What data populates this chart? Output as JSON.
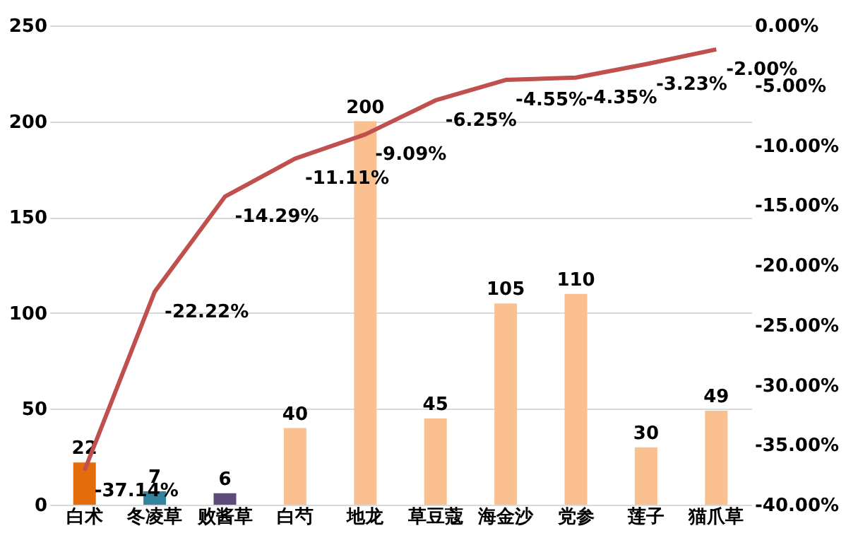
{
  "chart_data": {
    "type": "bar",
    "categories": [
      "白术",
      "冬凌草",
      "败酱草",
      "白芍",
      "地龙",
      "草豆蔻",
      "海金沙",
      "党参",
      "莲子",
      "猫爪草"
    ],
    "ylim": [
      0,
      250
    ],
    "yticks": [
      0,
      50,
      100,
      150,
      200,
      250
    ],
    "grid": "y",
    "data_labels": true,
    "y2lim": [
      -40,
      0
    ],
    "y2ticks": [
      {
        "value": 0,
        "label": "0.00%"
      },
      {
        "value": -5,
        "label": "-5.00%"
      },
      {
        "value": -10,
        "label": "-10.00%"
      },
      {
        "value": -15,
        "label": "-15.00%"
      },
      {
        "value": -20,
        "label": "-20.00%"
      },
      {
        "value": -25,
        "label": "-25.00%"
      },
      {
        "value": -30,
        "label": "-30.00%"
      },
      {
        "value": -35,
        "label": "-35.00%"
      },
      {
        "value": -40,
        "label": "-40.00%"
      }
    ],
    "series": [
      {
        "colors": [
          "#e46c0a",
          "#31849b",
          "#604a7b",
          "#fac090",
          "#fac090",
          "#fac090",
          "#fac090",
          "#fac090",
          "#fac090",
          "#fac090"
        ],
        "values": [
          22,
          7,
          6,
          40,
          200,
          45,
          105,
          110,
          30,
          49
        ]
      },
      {
        "type": "line",
        "axis": "y2",
        "color": "#c0504d",
        "marker": "none",
        "line_style": "solid",
        "values": [
          -37.14,
          -22.22,
          -14.29,
          -11.11,
          -9.09,
          -6.25,
          -4.55,
          -4.35,
          -3.23,
          -2.0
        ],
        "value_labels": [
          "-37.14%",
          "-22.22%",
          "-14.29%",
          "-11.11%",
          "-9.09%",
          "-6.25%",
          "-4.55%",
          "-4.35%",
          "-3.23%",
          "-2.00%"
        ]
      }
    ]
  }
}
